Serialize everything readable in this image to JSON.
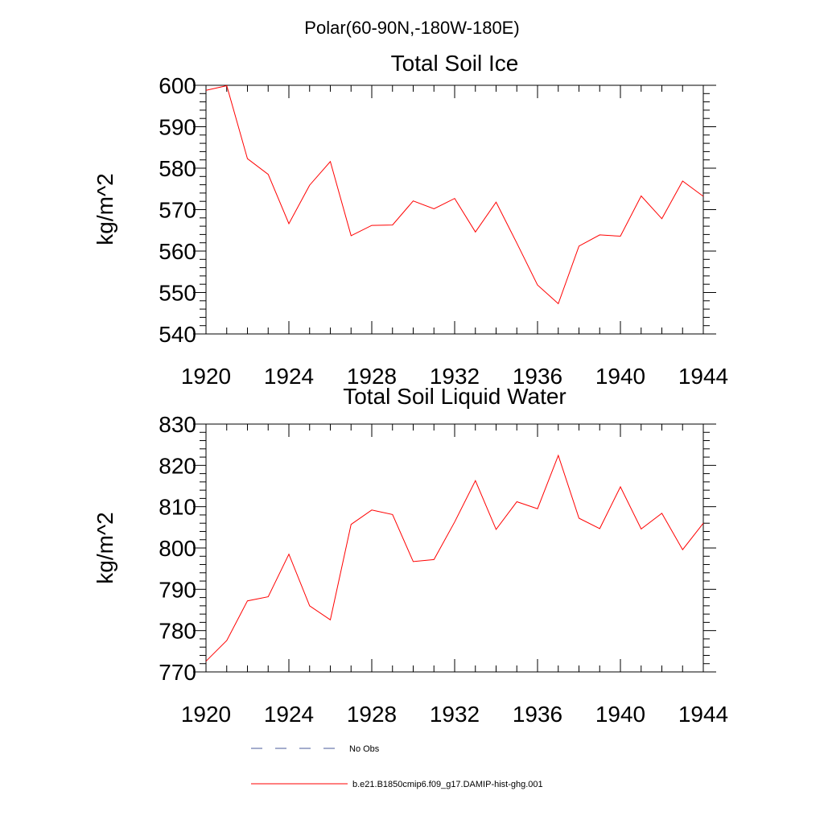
{
  "figure_title": "Polar(60-90N,-180W-180E)",
  "chart_data": [
    {
      "type": "line",
      "title": "Total Soil Ice",
      "xlabel": "",
      "ylabel": "kg/m^2",
      "xlim": [
        1920,
        1944
      ],
      "ylim": [
        540,
        600
      ],
      "xticks": [
        1920,
        1924,
        1928,
        1932,
        1936,
        1940,
        1944
      ],
      "yticks": [
        540,
        550,
        560,
        570,
        580,
        590,
        600
      ],
      "grid": false,
      "series": [
        {
          "name": "b.e21.B1850cmip6.f09_g17.DAMIP-hist-ghg.001",
          "color": "#ff0000",
          "x": [
            1920,
            1921,
            1922,
            1923,
            1924,
            1925,
            1926,
            1927,
            1928,
            1929,
            1930,
            1931,
            1932,
            1933,
            1934,
            1935,
            1936,
            1937,
            1938,
            1939,
            1940,
            1941,
            1942,
            1943,
            1944
          ],
          "values": [
            598.8,
            599.9,
            582.3,
            578.5,
            566.6,
            575.9,
            581.6,
            563.7,
            566.2,
            566.3,
            572.1,
            570.2,
            572.7,
            564.6,
            571.8,
            561.9,
            551.8,
            547.3,
            561.2,
            563.9,
            563.6,
            573.3,
            567.8,
            576.9,
            573.2
          ]
        }
      ]
    },
    {
      "type": "line",
      "title": "Total Soil Liquid Water",
      "xlabel": "",
      "ylabel": "kg/m^2",
      "xlim": [
        1920,
        1944
      ],
      "ylim": [
        770,
        830
      ],
      "xticks": [
        1920,
        1924,
        1928,
        1932,
        1936,
        1940,
        1944
      ],
      "yticks": [
        770,
        780,
        790,
        800,
        810,
        820,
        830
      ],
      "grid": false,
      "series": [
        {
          "name": "b.e21.B1850cmip6.f09_g17.DAMIP-hist-ghg.001",
          "color": "#ff0000",
          "x": [
            1920,
            1921,
            1922,
            1923,
            1924,
            1925,
            1926,
            1927,
            1928,
            1929,
            1930,
            1931,
            1932,
            1933,
            1934,
            1935,
            1936,
            1937,
            1938,
            1939,
            1940,
            1941,
            1942,
            1943,
            1944
          ],
          "values": [
            772.6,
            777.6,
            787.2,
            788.2,
            798.5,
            786.0,
            782.6,
            805.7,
            809.2,
            808.1,
            796.7,
            797.2,
            806.3,
            816.3,
            804.5,
            811.2,
            809.5,
            822.4,
            807.2,
            804.7,
            814.8,
            804.6,
            808.4,
            799.6,
            806.0
          ]
        }
      ]
    }
  ],
  "legend": {
    "placement": "bottom",
    "entries": [
      {
        "label": "No Obs",
        "color": "#4a5a9a",
        "style": "dashed"
      },
      {
        "label": "b.e21.B1850cmip6.f09_g17.DAMIP-hist-ghg.001",
        "color": "#ff0000",
        "style": "solid"
      }
    ]
  }
}
